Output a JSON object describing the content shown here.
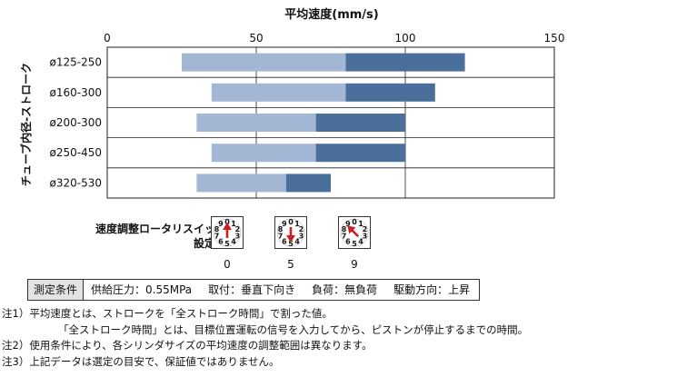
{
  "chart_data": {
    "type": "bar",
    "title": "平均速度(mm/s)",
    "ylabel": "チューブ内径-ストローク",
    "xlim": [
      0,
      150
    ],
    "x_ticks": [
      0,
      50,
      100,
      150
    ],
    "grid": true,
    "categories": [
      "ø125-250",
      "ø160-300",
      "ø200-300",
      "ø250-450",
      "ø320-530"
    ],
    "series": [
      {
        "color": "#a3b6d3",
        "ranges": [
          [
            25,
            80
          ],
          [
            35,
            80
          ],
          [
            30,
            70
          ],
          [
            35,
            70
          ],
          [
            30,
            60
          ]
        ]
      },
      {
        "color": "#4a6f9b",
        "ranges": [
          [
            80,
            120
          ],
          [
            80,
            110
          ],
          [
            70,
            100
          ],
          [
            70,
            100
          ],
          [
            60,
            75
          ]
        ]
      }
    ]
  },
  "switch": {
    "label_line1": "速度調整ロータリスイッチ",
    "label_line2": "設定値",
    "digits": [
      "0",
      "1",
      "2",
      "3",
      "4",
      "5",
      "6",
      "7",
      "8",
      "9"
    ],
    "settings": [
      {
        "value": "0",
        "arrow": "up"
      },
      {
        "value": "5",
        "arrow": "down"
      },
      {
        "value": "9",
        "arrow": "up-left"
      }
    ],
    "arrow_color": "#cc1f1f"
  },
  "conditions": {
    "header": "測定条件",
    "items": [
      "供給圧力：0.55MPa",
      "取付：垂直下向き",
      "負荷：無負荷",
      "駆動方向：上昇"
    ]
  },
  "notes": [
    "注1）平均速度とは、ストロークを「全ストローク時間」で割った値。",
    "「全ストローク時間」とは、目標位置運転の信号を入力してから、ピストンが停止するまでの時間。",
    "注2）使用条件により、各シリンダサイズの平均速度の調整範囲は異なります。",
    "注3）上記データは選定の目安で、保証値ではありません。"
  ]
}
